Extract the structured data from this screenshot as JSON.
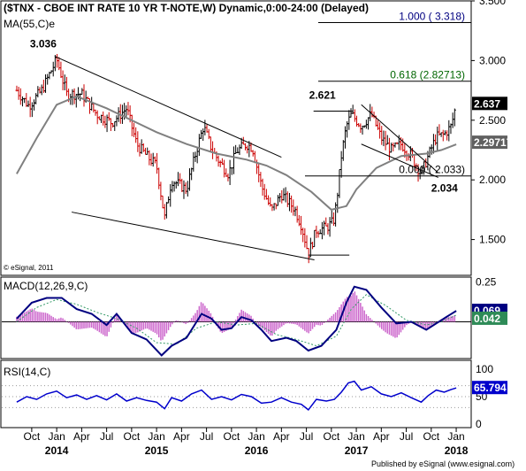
{
  "header": {
    "title": "($TNX - CBOE INT RATE 10 YR T-NOTE,W) Dynamic,0:00-24:00 (Delayed)",
    "ma_label": "MA(55,C)e",
    "copyright": "© eSignal, 2011"
  },
  "panels": {
    "macd_label": "MACD(12,26,9,C)",
    "rsi_label": "RSI(14,C)"
  },
  "footer": {
    "published": "Published by eSignal (www.esignal.com)"
  },
  "colors": {
    "up_bar": "#000000",
    "down_bar": "#cc0000",
    "ma_line": "#808080",
    "fib_line": "#006600",
    "macd_line": "#000080",
    "signal_line": "#339966",
    "histogram": "#cc66cc",
    "rsi_line": "#0000cc",
    "price_tag": "#000000",
    "value_tag": "#606060"
  },
  "chart_data": [
    {
      "type": "ohlc",
      "title": "$TNX - CBOE INT RATE 10 YR T-NOTE, W",
      "ylim": [
        1.2,
        3.5
      ],
      "y_ticks": [
        "1.500",
        "2.000",
        "2.500",
        "3.000",
        "3.500"
      ],
      "x_tick_labels": [
        "Oct",
        "Jan",
        "Apr",
        "Jul",
        "Oct",
        "Jan",
        "Apr",
        "Jul",
        "Oct",
        "Jan",
        "Apr",
        "Jul",
        "Oct",
        "Jan",
        "Apr",
        "Jul",
        "Oct",
        "Jan"
      ],
      "year_labels": [
        "2014",
        "2015",
        "2016",
        "2017",
        "2018"
      ],
      "close_path": [
        [
          2013.6,
          2.75
        ],
        [
          2013.72,
          2.62
        ],
        [
          2013.85,
          2.75
        ],
        [
          2014.0,
          3.01
        ],
        [
          2014.1,
          2.72
        ],
        [
          2014.25,
          2.72
        ],
        [
          2014.4,
          2.55
        ],
        [
          2014.55,
          2.48
        ],
        [
          2014.7,
          2.6
        ],
        [
          2014.8,
          2.3
        ],
        [
          2014.9,
          2.2
        ],
        [
          2015.0,
          2.12
        ],
        [
          2015.08,
          1.68
        ],
        [
          2015.15,
          2.0
        ],
        [
          2015.3,
          1.92
        ],
        [
          2015.4,
          2.25
        ],
        [
          2015.47,
          2.45
        ],
        [
          2015.55,
          2.26
        ],
        [
          2015.63,
          2.15
        ],
        [
          2015.72,
          2.05
        ],
        [
          2015.8,
          2.24
        ],
        [
          2015.9,
          2.3
        ],
        [
          2015.96,
          2.27
        ],
        [
          2016.05,
          1.95
        ],
        [
          2016.15,
          1.74
        ],
        [
          2016.25,
          1.88
        ],
        [
          2016.38,
          1.76
        ],
        [
          2016.45,
          1.62
        ],
        [
          2016.52,
          1.38
        ],
        [
          2016.6,
          1.58
        ],
        [
          2016.7,
          1.6
        ],
        [
          2016.77,
          1.65
        ],
        [
          2016.8,
          1.8
        ],
        [
          2016.85,
          2.2
        ],
        [
          2016.9,
          2.45
        ],
        [
          2016.95,
          2.55
        ],
        [
          2017.05,
          2.45
        ],
        [
          2017.15,
          2.55
        ],
        [
          2017.25,
          2.35
        ],
        [
          2017.35,
          2.25
        ],
        [
          2017.45,
          2.3
        ],
        [
          2017.55,
          2.2
        ],
        [
          2017.65,
          2.05
        ],
        [
          2017.72,
          2.2
        ],
        [
          2017.8,
          2.36
        ],
        [
          2017.88,
          2.38
        ],
        [
          2017.95,
          2.45
        ],
        [
          2018.0,
          2.637
        ]
      ],
      "ma55": [
        [
          2013.6,
          2.05
        ],
        [
          2013.8,
          2.35
        ],
        [
          2014.0,
          2.63
        ],
        [
          2014.2,
          2.7
        ],
        [
          2014.5,
          2.6
        ],
        [
          2014.8,
          2.48
        ],
        [
          2015.0,
          2.4
        ],
        [
          2015.3,
          2.3
        ],
        [
          2015.6,
          2.22
        ],
        [
          2015.9,
          2.17
        ],
        [
          2016.1,
          2.12
        ],
        [
          2016.3,
          2.04
        ],
        [
          2016.55,
          1.9
        ],
        [
          2016.75,
          1.75
        ],
        [
          2016.9,
          1.78
        ],
        [
          2017.0,
          1.92
        ],
        [
          2017.2,
          2.1
        ],
        [
          2017.45,
          2.2
        ],
        [
          2017.7,
          2.22
        ],
        [
          2017.85,
          2.25
        ],
        [
          2018.0,
          2.297171
        ]
      ],
      "annotations": [
        {
          "label": "3.036",
          "x": 2013.98,
          "y": 3.036,
          "kind": "high"
        },
        {
          "label": "2.621",
          "x": 2016.97,
          "y": 2.621,
          "kind": "high"
        },
        {
          "label": "2.034",
          "x": 2017.75,
          "y": 2.034,
          "kind": "low"
        }
      ],
      "fibonacci": [
        {
          "label": "1.000 ( 3.318)",
          "level": 3.318
        },
        {
          "label": "0.618 (2.82713)",
          "level": 2.82713
        },
        {
          "label": "0.000 ( 2.033)",
          "level": 2.033
        }
      ],
      "trendlines": [
        {
          "from": [
            2013.98,
            3.036
          ],
          "to": [
            2016.25,
            2.19
          ]
        },
        {
          "from": [
            2014.15,
            1.73
          ],
          "to": [
            2016.58,
            1.33
          ]
        },
        {
          "from": [
            2017.05,
            2.63
          ],
          "to": [
            2017.82,
            2.06
          ]
        },
        {
          "from": [
            2017.05,
            2.3
          ],
          "to": [
            2017.82,
            2.02
          ]
        }
      ],
      "last_price": "2.637",
      "ma_value": "2.297171"
    },
    {
      "type": "line",
      "title": "MACD(12,26,9,C)",
      "ylim": [
        -0.23,
        0.28
      ],
      "y_ticks": [
        "0.25"
      ],
      "macd": [
        [
          2013.6,
          0.02
        ],
        [
          2013.75,
          0.12
        ],
        [
          2013.9,
          0.15
        ],
        [
          2014.05,
          0.15
        ],
        [
          2014.2,
          0.08
        ],
        [
          2014.35,
          0.05
        ],
        [
          2014.5,
          -0.02
        ],
        [
          2014.6,
          0.05
        ],
        [
          2014.75,
          -0.07
        ],
        [
          2014.9,
          -0.11
        ],
        [
          2015.05,
          -0.21
        ],
        [
          2015.15,
          -0.15
        ],
        [
          2015.3,
          -0.1
        ],
        [
          2015.45,
          0.05
        ],
        [
          2015.55,
          0.02
        ],
        [
          2015.65,
          -0.05
        ],
        [
          2015.75,
          -0.04
        ],
        [
          2015.85,
          0.03
        ],
        [
          2015.95,
          0.01
        ],
        [
          2016.05,
          -0.05
        ],
        [
          2016.15,
          -0.12
        ],
        [
          2016.3,
          -0.1
        ],
        [
          2016.4,
          -0.12
        ],
        [
          2016.52,
          -0.18
        ],
        [
          2016.65,
          -0.15
        ],
        [
          2016.8,
          -0.05
        ],
        [
          2016.9,
          0.12
        ],
        [
          2016.98,
          0.22
        ],
        [
          2017.1,
          0.2
        ],
        [
          2017.25,
          0.09
        ],
        [
          2017.4,
          -0.01
        ],
        [
          2017.55,
          0.0
        ],
        [
          2017.7,
          -0.05
        ],
        [
          2017.8,
          -0.01
        ],
        [
          2017.9,
          0.03
        ],
        [
          2018.0,
          0.069
        ]
      ],
      "signal": [
        [
          2013.6,
          0.0
        ],
        [
          2013.8,
          0.09
        ],
        [
          2014.0,
          0.14
        ],
        [
          2014.2,
          0.11
        ],
        [
          2014.4,
          0.06
        ],
        [
          2014.6,
          0.02
        ],
        [
          2014.8,
          -0.04
        ],
        [
          2015.0,
          -0.13
        ],
        [
          2015.2,
          -0.14
        ],
        [
          2015.4,
          -0.04
        ],
        [
          2015.6,
          0.0
        ],
        [
          2015.8,
          -0.02
        ],
        [
          2016.0,
          -0.01
        ],
        [
          2016.2,
          -0.08
        ],
        [
          2016.4,
          -0.11
        ],
        [
          2016.6,
          -0.15
        ],
        [
          2016.8,
          -0.09
        ],
        [
          2016.95,
          0.08
        ],
        [
          2017.1,
          0.17
        ],
        [
          2017.3,
          0.1
        ],
        [
          2017.5,
          0.01
        ],
        [
          2017.7,
          -0.02
        ],
        [
          2017.85,
          0.0
        ],
        [
          2018.0,
          0.042
        ]
      ],
      "macd_value": "0.069",
      "signal_value": "0.042"
    },
    {
      "type": "line",
      "title": "RSI(14,C)",
      "ylim": [
        0,
        100
      ],
      "y_ticks": [
        "100",
        "50",
        "0"
      ],
      "rsi": [
        [
          2013.6,
          40
        ],
        [
          2013.7,
          50
        ],
        [
          2013.8,
          45
        ],
        [
          2013.9,
          55
        ],
        [
          2014.0,
          60
        ],
        [
          2014.1,
          48
        ],
        [
          2014.2,
          53
        ],
        [
          2014.3,
          45
        ],
        [
          2014.4,
          52
        ],
        [
          2014.5,
          44
        ],
        [
          2014.6,
          55
        ],
        [
          2014.7,
          42
        ],
        [
          2014.8,
          48
        ],
        [
          2014.9,
          43
        ],
        [
          2015.0,
          40
        ],
        [
          2015.08,
          28
        ],
        [
          2015.15,
          48
        ],
        [
          2015.25,
          42
        ],
        [
          2015.35,
          55
        ],
        [
          2015.45,
          62
        ],
        [
          2015.55,
          45
        ],
        [
          2015.65,
          50
        ],
        [
          2015.75,
          44
        ],
        [
          2015.85,
          54
        ],
        [
          2015.95,
          50
        ],
        [
          2016.05,
          38
        ],
        [
          2016.15,
          40
        ],
        [
          2016.25,
          48
        ],
        [
          2016.35,
          40
        ],
        [
          2016.45,
          36
        ],
        [
          2016.52,
          26
        ],
        [
          2016.6,
          45
        ],
        [
          2016.7,
          42
        ],
        [
          2016.78,
          45
        ],
        [
          2016.85,
          58
        ],
        [
          2016.92,
          75
        ],
        [
          2016.98,
          78
        ],
        [
          2017.05,
          62
        ],
        [
          2017.15,
          68
        ],
        [
          2017.25,
          55
        ],
        [
          2017.35,
          50
        ],
        [
          2017.45,
          57
        ],
        [
          2017.55,
          48
        ],
        [
          2017.65,
          40
        ],
        [
          2017.72,
          52
        ],
        [
          2017.8,
          62
        ],
        [
          2017.88,
          58
        ],
        [
          2017.95,
          63
        ],
        [
          2018.0,
          65.794
        ]
      ],
      "rsi_value": "65.794"
    }
  ]
}
